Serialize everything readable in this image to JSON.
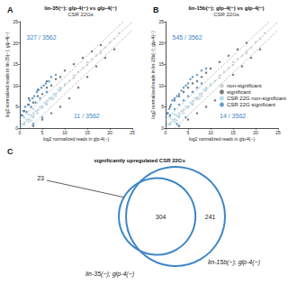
{
  "chart_data": [
    {
      "type": "scatter",
      "panel": "A",
      "title": "lin-35(−); glp-4(−) vs glp-4(−)",
      "subtitle": "CSR 22Gs",
      "x_label": "log2 normalized reads in glp-4(−)",
      "y_label": "log2 normalized reads in lin-35(−); glp-4(−)",
      "xlim": [
        0,
        25
      ],
      "ylim": [
        0,
        25
      ],
      "xticks": [
        0,
        5,
        10,
        15,
        20,
        25
      ],
      "yticks": [
        0,
        5,
        10,
        15,
        20,
        25
      ],
      "grid": false,
      "diagonals": [
        -2,
        0,
        2
      ],
      "line_style": "dashed",
      "annotations": [
        "327 / 3562",
        "11 / 3562"
      ],
      "series": [
        {
          "name": "non-significant",
          "color": "#c8c8c8",
          "values": [
            [
              1,
              1.2
            ],
            [
              2,
              2.1
            ],
            [
              3,
              2.8
            ],
            [
              4,
              4.3
            ],
            [
              5,
              5.1
            ],
            [
              6,
              5.7
            ],
            [
              7,
              7.2
            ],
            [
              8,
              8.1
            ],
            [
              9,
              8.8
            ],
            [
              10,
              10.3
            ],
            [
              11,
              11.1
            ],
            [
              12,
              11.8
            ],
            [
              13,
              13.2
            ],
            [
              14,
              14.1
            ],
            [
              15,
              14.8
            ],
            [
              16,
              16.2
            ],
            [
              17,
              17
            ],
            [
              18,
              18.1
            ],
            [
              19,
              18.9
            ],
            [
              20,
              20.2
            ],
            [
              21,
              21
            ],
            [
              22,
              22.3
            ],
            [
              3,
              3.5
            ],
            [
              6,
              6.4
            ],
            [
              9,
              9.5
            ],
            [
              12,
              12.4
            ],
            [
              15,
              15.5
            ],
            [
              18,
              17.6
            ],
            [
              2.5,
              1.8
            ],
            [
              7.5,
              6.9
            ]
          ]
        },
        {
          "name": "significant",
          "color": "#5a5a5a",
          "values": [
            [
              1,
              4
            ],
            [
              2,
              5.5
            ],
            [
              3,
              6
            ],
            [
              4,
              7.5
            ],
            [
              5,
              8
            ],
            [
              6,
              9.5
            ],
            [
              7,
              10
            ],
            [
              8,
              11.5
            ],
            [
              9,
              12
            ],
            [
              10,
              13.5
            ],
            [
              12,
              15
            ],
            [
              14,
              16.5
            ],
            [
              16,
              18
            ],
            [
              18,
              19.5
            ],
            [
              0.5,
              3
            ],
            [
              2,
              7
            ],
            [
              4,
              9
            ],
            [
              6,
              11
            ],
            [
              3,
              0.5
            ],
            [
              5,
              2
            ],
            [
              7,
              3.5
            ],
            [
              9,
              5
            ],
            [
              11,
              7
            ],
            [
              13,
              9.5
            ],
            [
              15,
              12
            ],
            [
              17,
              14.5
            ],
            [
              19,
              16.5
            ],
            [
              21,
              18.5
            ]
          ]
        },
        {
          "name": "CSR 22G non-significant",
          "color": "#9dd6ef",
          "values": [
            [
              0.5,
              1
            ],
            [
              1,
              0.8
            ],
            [
              1.5,
              2
            ],
            [
              2,
              1.5
            ],
            [
              2.5,
              3
            ],
            [
              3,
              2.5
            ],
            [
              3.5,
              4
            ],
            [
              4,
              3.5
            ],
            [
              4.5,
              5
            ],
            [
              5,
              4.8
            ],
            [
              5.5,
              6
            ],
            [
              6,
              5.5
            ],
            [
              6.5,
              7
            ],
            [
              7,
              6.8
            ],
            [
              7.5,
              8
            ],
            [
              8,
              7.5
            ],
            [
              8.5,
              9
            ],
            [
              9,
              9.2
            ],
            [
              10,
              10
            ],
            [
              1,
              2.5
            ],
            [
              2,
              3.2
            ],
            [
              3,
              4.5
            ]
          ]
        },
        {
          "name": "CSR 22G significant",
          "color": "#3d85c6",
          "values": [
            [
              0.3,
              3
            ],
            [
              0.8,
              4
            ],
            [
              1.2,
              5
            ],
            [
              1.8,
              5.5
            ],
            [
              2.2,
              6.5
            ],
            [
              2.8,
              7
            ],
            [
              3.2,
              7.5
            ],
            [
              3.8,
              8.5
            ],
            [
              4.2,
              9
            ],
            [
              4.8,
              9.5
            ],
            [
              5.3,
              10
            ],
            [
              5.8,
              10.5
            ],
            [
              6.5,
              11
            ],
            [
              7,
              12
            ],
            [
              8,
              12.5
            ],
            [
              1.5,
              3.8
            ],
            [
              2.5,
              5
            ],
            [
              3.5,
              6
            ],
            [
              4.5,
              7
            ],
            [
              6,
              8.5
            ],
            [
              3,
              1
            ],
            [
              5,
              2.5
            ]
          ]
        }
      ]
    },
    {
      "type": "scatter",
      "panel": "B",
      "title": "lin-15b(−); glp-4(−) vs glp-4(−)",
      "subtitle": "CSR 22Gs",
      "x_label": "log2 normalized reads in glp-4(−)",
      "y_label": "log2 normalized reads in lin-15b(−); glp-4(−)",
      "xlim": [
        0,
        25
      ],
      "ylim": [
        0,
        25
      ],
      "xticks": [
        0,
        5,
        10,
        15,
        20,
        25
      ],
      "yticks": [
        0,
        5,
        10,
        15,
        20,
        25
      ],
      "grid": false,
      "diagonals": [
        -2,
        0,
        2
      ],
      "line_style": "dashed",
      "legend": "right",
      "annotations": [
        "545 / 3562",
        "14 / 3562"
      ],
      "series": [
        {
          "name": "non-significant",
          "color": "#c8c8c8",
          "values": [
            [
              1,
              1.2
            ],
            [
              2,
              2.1
            ],
            [
              3,
              2.8
            ],
            [
              4,
              4.3
            ],
            [
              5,
              5.1
            ],
            [
              6,
              5.7
            ],
            [
              7,
              7.2
            ],
            [
              8,
              8.1
            ],
            [
              9,
              8.8
            ],
            [
              10,
              10.3
            ],
            [
              11,
              11.1
            ],
            [
              12,
              11.8
            ],
            [
              13,
              13.2
            ],
            [
              14,
              14.1
            ],
            [
              15,
              14.8
            ],
            [
              16,
              16.2
            ],
            [
              17,
              17
            ],
            [
              18,
              18.1
            ],
            [
              19,
              18.9
            ],
            [
              20,
              20.2
            ],
            [
              21,
              21
            ],
            [
              22,
              22.3
            ],
            [
              3,
              3.5
            ],
            [
              6,
              6.4
            ],
            [
              9,
              9.5
            ],
            [
              12,
              12.4
            ],
            [
              15,
              15.5
            ],
            [
              18,
              17.6
            ],
            [
              2.5,
              1.8
            ],
            [
              7.5,
              6.9
            ]
          ]
        },
        {
          "name": "significant",
          "color": "#5a5a5a",
          "values": [
            [
              1,
              5
            ],
            [
              2,
              6.5
            ],
            [
              3,
              7.5
            ],
            [
              4,
              8.5
            ],
            [
              5,
              9.5
            ],
            [
              6,
              10.5
            ],
            [
              7,
              11
            ],
            [
              8,
              12
            ],
            [
              9,
              13
            ],
            [
              10,
              14
            ],
            [
              12,
              15.5
            ],
            [
              14,
              17
            ],
            [
              16,
              18.5
            ],
            [
              18,
              20
            ],
            [
              0.5,
              3.5
            ],
            [
              3,
              0.5
            ],
            [
              5,
              2
            ],
            [
              7,
              3.5
            ],
            [
              9,
              5
            ],
            [
              11,
              6.5
            ],
            [
              15,
              12.5
            ],
            [
              17,
              14.5
            ],
            [
              19,
              16.5
            ],
            [
              21,
              18.5
            ]
          ]
        },
        {
          "name": "CSR 22G non-significant",
          "color": "#9dd6ef",
          "values": [
            [
              0.5,
              1
            ],
            [
              1,
              0.8
            ],
            [
              1.5,
              2
            ],
            [
              2,
              1.5
            ],
            [
              2.5,
              3
            ],
            [
              3,
              2.5
            ],
            [
              3.5,
              4
            ],
            [
              4,
              3.5
            ],
            [
              4.5,
              5
            ],
            [
              5,
              4.8
            ],
            [
              5.5,
              6
            ],
            [
              6,
              5.5
            ],
            [
              6.5,
              7
            ],
            [
              7,
              6.8
            ],
            [
              7.5,
              8
            ],
            [
              8,
              7.5
            ],
            [
              8.5,
              9
            ],
            [
              9,
              9.2
            ],
            [
              10,
              10
            ],
            [
              1,
              2.5
            ],
            [
              2,
              3.2
            ]
          ]
        },
        {
          "name": "CSR 22G significant",
          "color": "#3d85c6",
          "values": [
            [
              0.3,
              3.5
            ],
            [
              0.8,
              4.5
            ],
            [
              1.2,
              5.5
            ],
            [
              1.5,
              6.5
            ],
            [
              2,
              7
            ],
            [
              2.5,
              7.5
            ],
            [
              3,
              8
            ],
            [
              3.5,
              8.8
            ],
            [
              4,
              9.5
            ],
            [
              4.5,
              10
            ],
            [
              5,
              10.5
            ],
            [
              5.5,
              11.5
            ],
            [
              6,
              12
            ],
            [
              7,
              12.5
            ],
            [
              8,
              13.5
            ],
            [
              9,
              14
            ],
            [
              1,
              3
            ],
            [
              2,
              4.5
            ],
            [
              3,
              5.5
            ],
            [
              4,
              6.5
            ],
            [
              5,
              7.5
            ],
            [
              6,
              8.5
            ],
            [
              7,
              9.5
            ],
            [
              8,
              10.5
            ],
            [
              2.5,
              1
            ],
            [
              4.5,
              2.5
            ]
          ]
        }
      ]
    },
    {
      "type": "venn",
      "panel": "C",
      "title": "significantly upregulated CSR 22Gs",
      "color": "#3d85c6",
      "sets": [
        "lin-35(−); glp-4(−)",
        "lin-15b(−); glp-4(−)"
      ],
      "values": {
        "only_first": 23,
        "both": 304,
        "only_second": 241
      }
    }
  ]
}
